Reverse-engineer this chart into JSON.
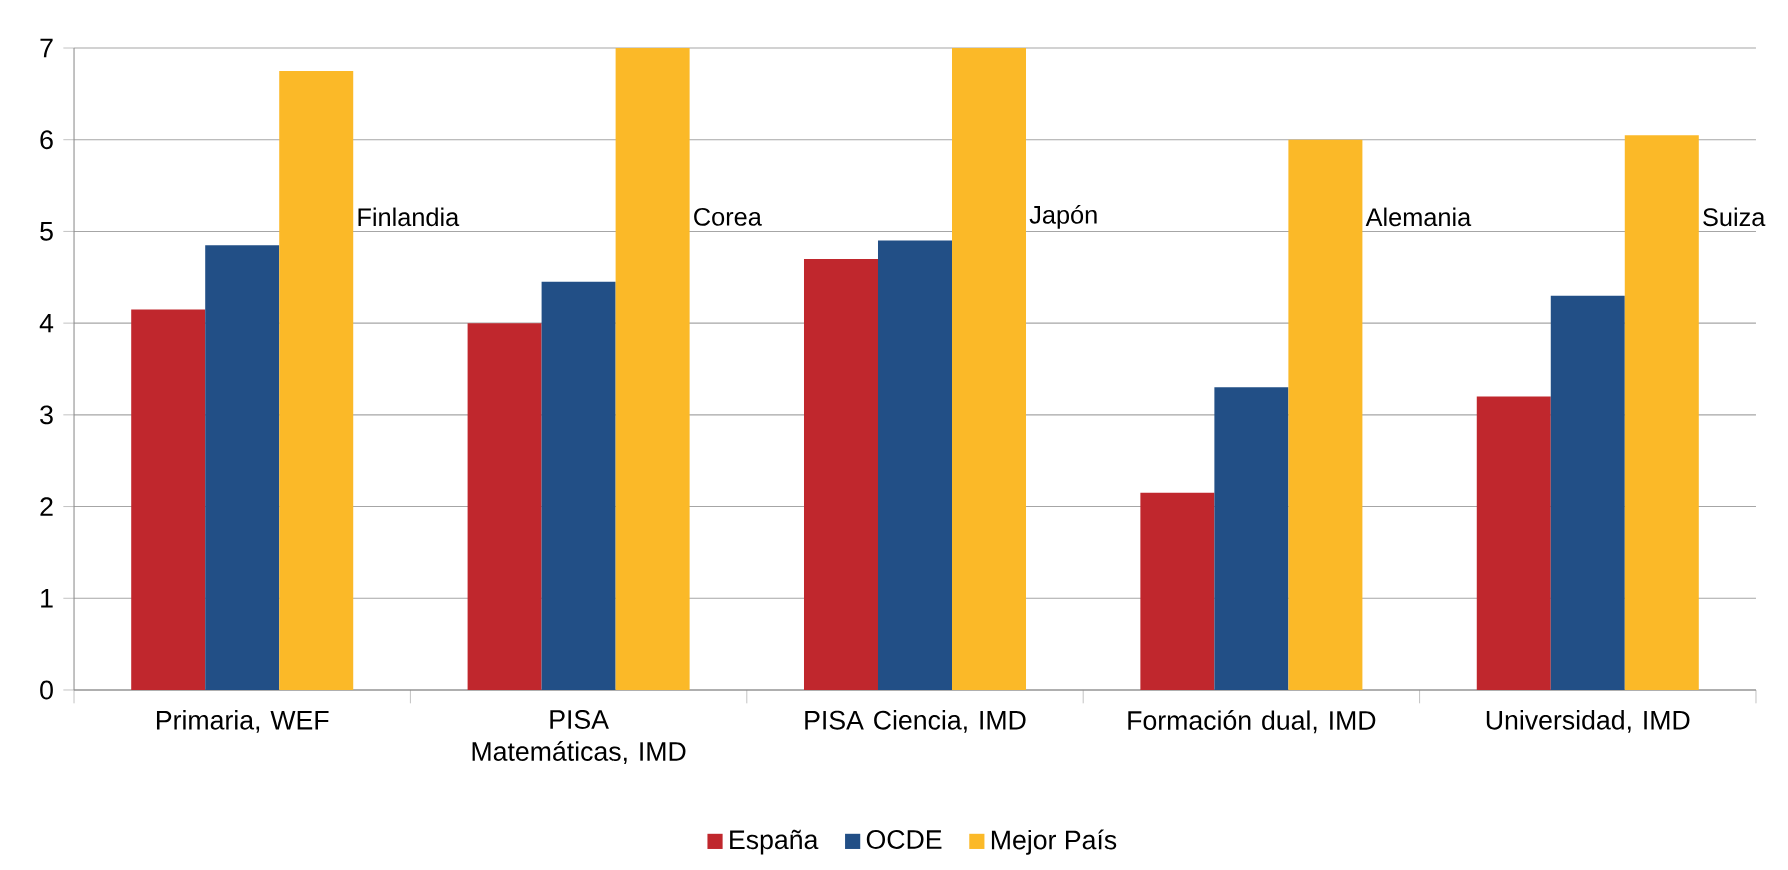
{
  "chart_data": {
    "type": "bar",
    "categories": [
      "Primaria, WEF",
      "PISA Matemáticas, IMD",
      "PISA Ciencia, IMD",
      "Formación dual, IMD",
      "Universidad, IMD"
    ],
    "series": [
      {
        "name": "España",
        "color": "#c0272d",
        "values": [
          4.15,
          4.0,
          4.7,
          2.15,
          3.2
        ]
      },
      {
        "name": "OCDE",
        "color": "#224f86",
        "values": [
          4.85,
          4.45,
          4.9,
          3.3,
          4.3
        ]
      },
      {
        "name": "Mejor País",
        "color": "#fbb928",
        "values": [
          6.75,
          7,
          7,
          6.0,
          6.05
        ]
      }
    ],
    "annotations": [
      "Finlandia",
      "Corea",
      "Japón",
      "Alemania",
      "Suiza"
    ],
    "ylim": [
      0,
      7
    ],
    "yticks": [
      0,
      1,
      2,
      3,
      4,
      5,
      6,
      7
    ],
    "grid": "y",
    "legend": "bottom"
  }
}
